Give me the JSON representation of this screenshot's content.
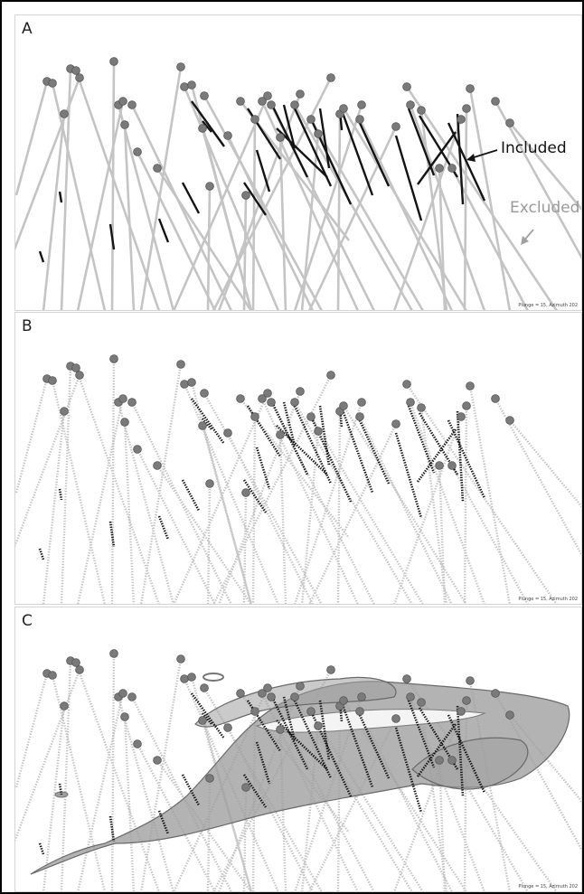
{
  "panels": [
    {
      "label": "A",
      "footnote": "Plunge = 15, Azimuth 202"
    },
    {
      "label": "B",
      "footnote": "Plunge = 15, Azimuth 202"
    },
    {
      "label": "C",
      "footnote": "Plunge = 15, Azimuth 202"
    }
  ],
  "annotations": {
    "included": "Included",
    "excluded": "Excluded"
  },
  "colors": {
    "excluded_trace": "#c4c4c4",
    "included_trace": "#141414",
    "collar": "#7a7a7a",
    "solid_surface": "#9e9e9e"
  }
}
